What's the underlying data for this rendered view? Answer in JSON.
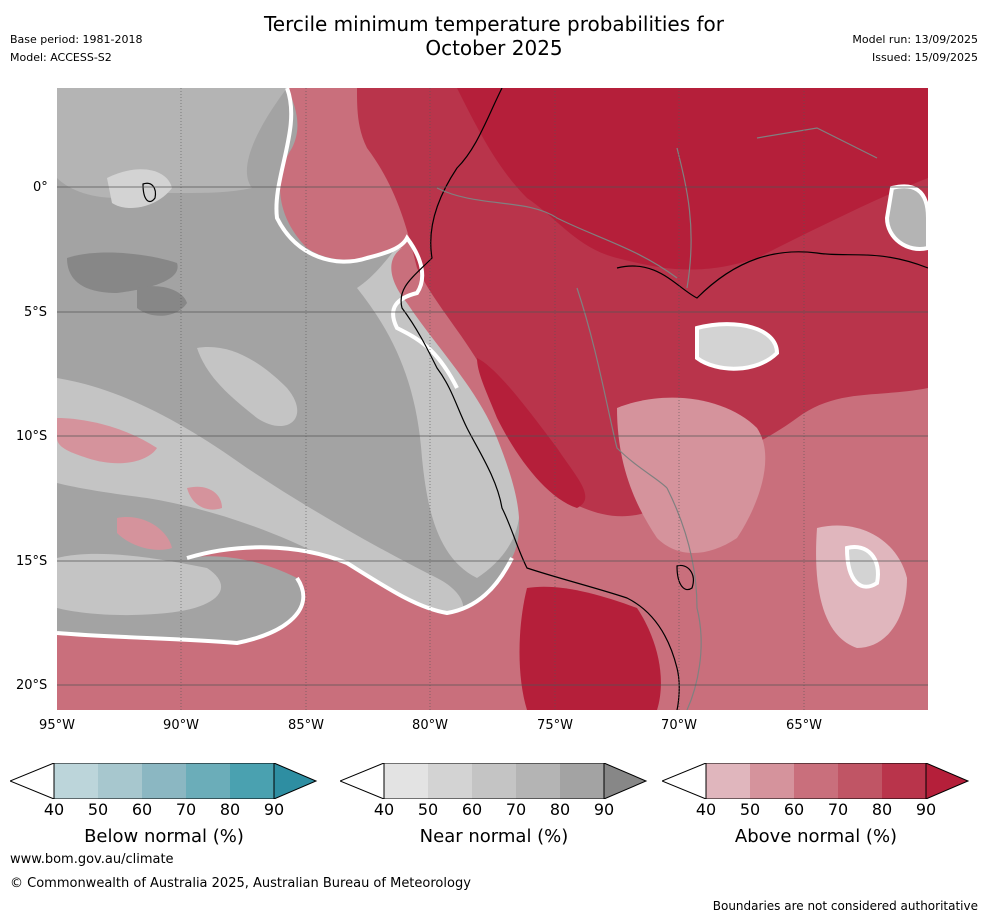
{
  "header": {
    "title_line1": "Tercile minimum temperature probabilities for",
    "title_line2": "October 2025",
    "base_period": "Base period: 1981-2018",
    "model": "Model: ACCESS-S2",
    "model_run": "Model run: 13/09/2025",
    "issued": "Issued: 15/09/2025"
  },
  "map": {
    "lat_labels": [
      "0°",
      "5°S",
      "10°S",
      "15°S",
      "20°S"
    ],
    "lon_labels": [
      "95°W",
      "90°W",
      "85°W",
      "80°W",
      "75°W",
      "70°W",
      "65°W"
    ],
    "features": [
      "galapagos-islands",
      "south-america-coastline",
      "country-borders",
      "amazon-river",
      "lake-titicaca"
    ],
    "colors": {
      "ocean_near_normal": "#a3a3a3",
      "land_above_normal": "#b51f3a"
    }
  },
  "colorbars": [
    {
      "label": "Below normal (%)",
      "ticks": [
        "40",
        "50",
        "60",
        "70",
        "80",
        "90"
      ],
      "colors": [
        "#ffffff",
        "#bcd5da",
        "#a7c7ce",
        "#8bb7c2",
        "#6badb9",
        "#4aa1b0",
        "#2e8ea2"
      ]
    },
    {
      "label": "Near normal (%)",
      "ticks": [
        "40",
        "50",
        "60",
        "70",
        "80",
        "90"
      ],
      "colors": [
        "#ffffff",
        "#e3e3e3",
        "#d3d3d3",
        "#c4c4c4",
        "#b4b4b4",
        "#a3a3a3",
        "#878787"
      ]
    },
    {
      "label": "Above normal (%)",
      "ticks": [
        "40",
        "50",
        "60",
        "70",
        "80",
        "90"
      ],
      "colors": [
        "#ffffff",
        "#e0b6bd",
        "#d5939c",
        "#c96f7c",
        "#c05565",
        "#b9344b",
        "#b51f3a"
      ]
    }
  ],
  "footer": {
    "url": "www.bom.gov.au/climate",
    "copyright": "© Commonwealth of Australia 2025, Australian Bureau of Meteorology",
    "disclaimer": "Boundaries are not considered authoritative"
  }
}
